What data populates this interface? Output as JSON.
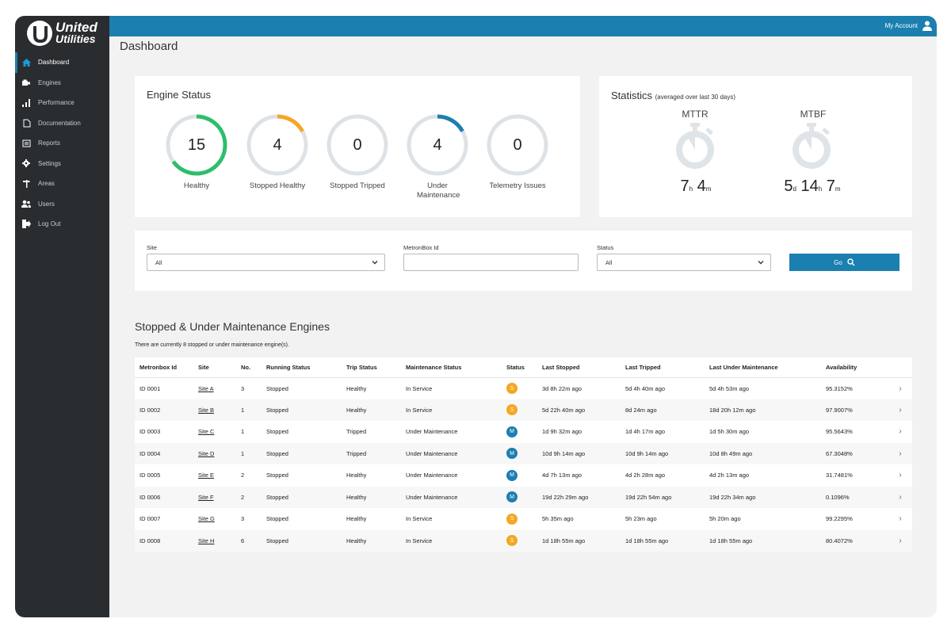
{
  "brand": {
    "line1": "United",
    "line2": "Utilities"
  },
  "sidebar": {
    "items": [
      {
        "label": "Dashboard",
        "icon": "home-icon",
        "active": true
      },
      {
        "label": "Engines",
        "icon": "engine-icon"
      },
      {
        "label": "Performance",
        "icon": "bar-chart-icon"
      },
      {
        "label": "Documentation",
        "icon": "document-icon"
      },
      {
        "label": "Reports",
        "icon": "reports-icon"
      },
      {
        "label": "Settings",
        "icon": "gear-icon"
      },
      {
        "label": "Areas",
        "icon": "signpost-icon"
      },
      {
        "label": "Users",
        "icon": "users-icon"
      },
      {
        "label": "Log Out",
        "icon": "logout-icon"
      }
    ]
  },
  "header": {
    "account_label": "My Account"
  },
  "page": {
    "title": "Dashboard"
  },
  "engine_status": {
    "title": "Engine Status",
    "gauges": [
      {
        "value": "15",
        "label": "Healthy",
        "fraction": 0.65,
        "color": "#2dbe6c"
      },
      {
        "value": "4",
        "label": "Stopped Healthy",
        "fraction": 0.17,
        "color": "#f5a623"
      },
      {
        "value": "0",
        "label": "Stopped Tripped",
        "fraction": 0,
        "color": "#2dbe6c"
      },
      {
        "value": "4",
        "label": "Under Maintenance",
        "fraction": 0.17,
        "color": "#1b7fb0"
      },
      {
        "value": "0",
        "label": "Telemetry Issues",
        "fraction": 0,
        "color": "#2dbe6c"
      }
    ]
  },
  "statistics": {
    "title": "Statistics",
    "subtitle": "(averaged over last 30 days)",
    "mttr": {
      "label": "MTTR",
      "h": "7",
      "h_unit": "h",
      "m": "4",
      "m_unit": "m"
    },
    "mtbf": {
      "label": "MTBF",
      "d": "5",
      "d_unit": "d",
      "h": "14",
      "h_unit": "h",
      "m": "7",
      "m_unit": "m"
    }
  },
  "filters": {
    "site_label": "Site",
    "site_value": "All",
    "metronbox_label": "MetronBox Id",
    "metronbox_value": "",
    "status_label": "Status",
    "status_value": "All",
    "go_label": "Go"
  },
  "engines_section": {
    "title": "Stopped & Under Maintenance Engines",
    "subtitle": "There are currently 8 stopped or under maintenance engine(s).",
    "columns": [
      "Metronbox Id",
      "Site",
      "No.",
      "Running Status",
      "Trip Status",
      "Maintenance Status",
      "Status",
      "Last Stopped",
      "Last Tripped",
      "Last Under Maintenance",
      "Availability"
    ],
    "status_colors": {
      "S": "#f5a623",
      "M": "#1b7fb0"
    },
    "rows": [
      {
        "id": "ID 0001",
        "site": "Site A",
        "no": "3",
        "running": "Stopped",
        "trip": "Healthy",
        "maint": "In Service",
        "status": "S",
        "last_stopped": "3d 8h 22m ago",
        "last_tripped": "5d 4h 40m ago",
        "last_maint": "5d 4h 53m ago",
        "availability": "95.3152%"
      },
      {
        "id": "ID 0002",
        "site": "Site B",
        "no": "1",
        "running": "Stopped",
        "trip": "Healthy",
        "maint": "In Service",
        "status": "S",
        "last_stopped": "5d 22h 40m ago",
        "last_tripped": "8d 24m ago",
        "last_maint": "18d 20h 12m ago",
        "availability": "97.9007%"
      },
      {
        "id": "ID 0003",
        "site": "Site C",
        "no": "1",
        "running": "Stopped",
        "trip": "Tripped",
        "maint": "Under Maintenance",
        "status": "M",
        "last_stopped": "1d 9h 32m ago",
        "last_tripped": "1d 4h 17m ago",
        "last_maint": "1d 5h 30m ago",
        "availability": "95.5643%"
      },
      {
        "id": "ID 0004",
        "site": "Site D",
        "no": "1",
        "running": "Stopped",
        "trip": "Tripped",
        "maint": "Under Maintenance",
        "status": "M",
        "last_stopped": "10d 9h 14m ago",
        "last_tripped": "10d 9h 14m ago",
        "last_maint": "10d 8h 49m ago",
        "availability": "67.3048%"
      },
      {
        "id": "ID 0005",
        "site": "Site E",
        "no": "2",
        "running": "Stopped",
        "trip": "Healthy",
        "maint": "Under Maintenance",
        "status": "M",
        "last_stopped": "4d 7h 13m ago",
        "last_tripped": "4d 2h 28m ago",
        "last_maint": "4d 2h 13m ago",
        "availability": "31.7481%"
      },
      {
        "id": "ID 0006",
        "site": "Site F",
        "no": "2",
        "running": "Stopped",
        "trip": "Healthy",
        "maint": "Under Maintenance",
        "status": "M",
        "last_stopped": "19d 22h 29m ago",
        "last_tripped": "19d 22h 54m ago",
        "last_maint": "19d 22h 34m ago",
        "availability": "0.1096%"
      },
      {
        "id": "ID 0007",
        "site": "Site G",
        "no": "3",
        "running": "Stopped",
        "trip": "Healthy",
        "maint": "In Service",
        "status": "S",
        "last_stopped": "5h 35m ago",
        "last_tripped": "5h 23m ago",
        "last_maint": "5h 20m ago",
        "availability": "99.2295%"
      },
      {
        "id": "ID 0008",
        "site": "Site H",
        "no": "6",
        "running": "Stopped",
        "trip": "Healthy",
        "maint": "In Service",
        "status": "S",
        "last_stopped": "1d 18h 55m ago",
        "last_tripped": "1d 18h 55m ago",
        "last_maint": "1d 18h 55m ago",
        "availability": "80.4072%"
      }
    ]
  }
}
